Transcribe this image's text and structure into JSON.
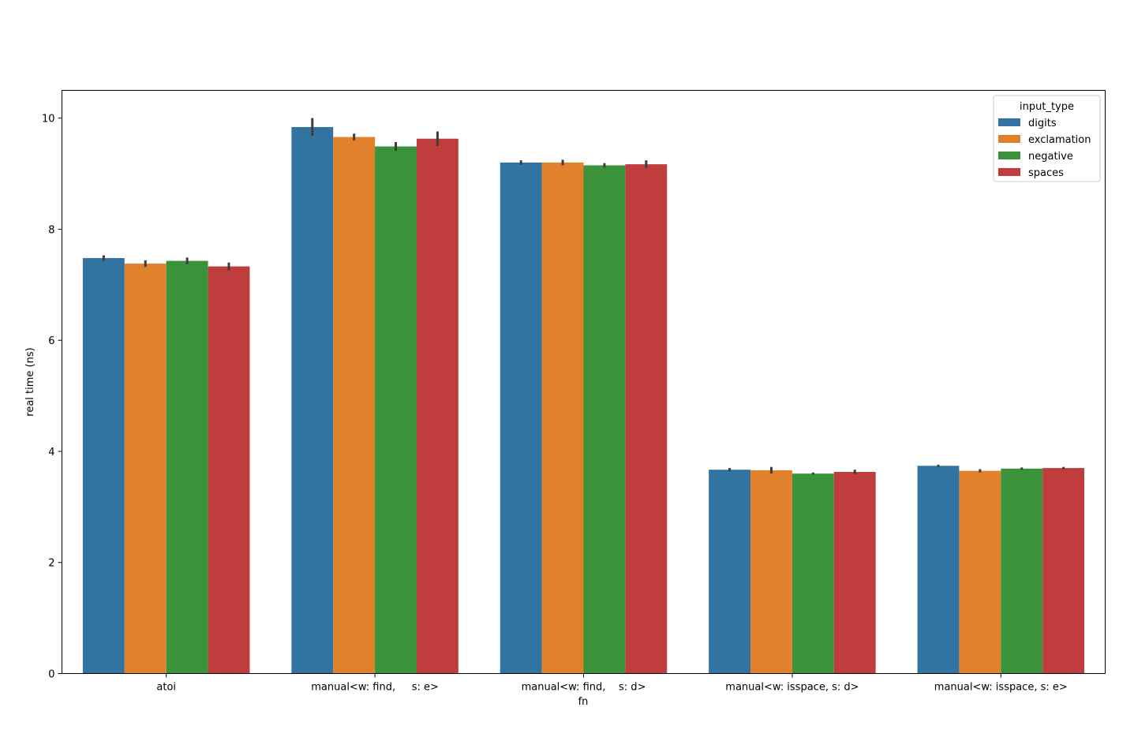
{
  "chart_data": {
    "type": "bar",
    "title": "",
    "xlabel": "fn",
    "ylabel": "real time (ns)",
    "ylim": [
      0,
      10.5
    ],
    "yticks": [
      0,
      2,
      4,
      6,
      8,
      10
    ],
    "grid": false,
    "legend": {
      "title": "input_type",
      "position": "top-right"
    },
    "categories": [
      "atoi",
      "manual<w: find,     s: e>",
      "manual<w: find,    s: d>",
      "manual<w: isspace, s: d>",
      "manual<w: isspace, s: e>"
    ],
    "series": [
      {
        "name": "digits",
        "color": "#3274a1",
        "values": [
          7.48,
          9.84,
          9.2,
          3.67,
          3.74
        ],
        "err": [
          0.05,
          0.16,
          0.04,
          0.03,
          0.02
        ]
      },
      {
        "name": "exclamation",
        "color": "#e1812c",
        "values": [
          7.38,
          9.66,
          9.2,
          3.66,
          3.65
        ],
        "err": [
          0.06,
          0.06,
          0.05,
          0.06,
          0.03
        ]
      },
      {
        "name": "negative",
        "color": "#3a923a",
        "values": [
          7.43,
          9.49,
          9.15,
          3.6,
          3.69
        ],
        "err": [
          0.06,
          0.08,
          0.04,
          0.02,
          0.02
        ]
      },
      {
        "name": "spaces",
        "color": "#c03d3e",
        "values": [
          7.33,
          9.63,
          9.17,
          3.63,
          3.7
        ],
        "err": [
          0.07,
          0.13,
          0.07,
          0.04,
          0.02
        ]
      }
    ]
  }
}
